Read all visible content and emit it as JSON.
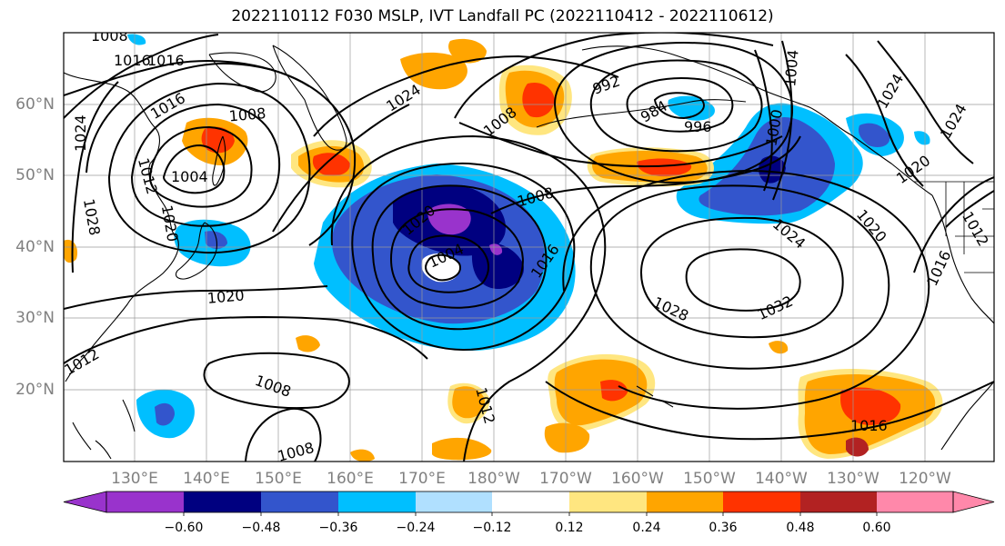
{
  "title": "2022110112 F030 MSLP, IVT Landfall PC (2022110412 - 2022110612)",
  "lat_labels": [
    "60°N",
    "50°N",
    "40°N",
    "30°N",
    "20°N"
  ],
  "lon_labels": [
    "130°E",
    "140°E",
    "150°E",
    "160°E",
    "170°E",
    "180°W",
    "170°W",
    "160°W",
    "150°W",
    "140°W",
    "130°W",
    "120°W"
  ],
  "colorbar": {
    "tick_labels": [
      "−0.60",
      "−0.48",
      "−0.36",
      "−0.24",
      "−0.12",
      "0.12",
      "0.24",
      "0.36",
      "0.48",
      "0.60"
    ],
    "colors": [
      "#9933cc",
      "#000080",
      "#3355cc",
      "#00bfff",
      "#b0e0ff",
      "#ffffff",
      "#ffe680",
      "#ffa500",
      "#ff3300",
      "#b22222",
      "#ff88aa"
    ]
  },
  "contour_labels": [
    "1008",
    "1016",
    "1016",
    "1016",
    "1008",
    "1024",
    "1004",
    "1012",
    "1020",
    "1028",
    "1024",
    "992",
    "984",
    "996",
    "1008",
    "1000",
    "1004",
    "1024",
    "1020",
    "1020",
    "1016",
    "1012",
    "1024",
    "1020",
    "1008",
    "1004",
    "1016",
    "1012",
    "1008",
    "1008",
    "1032",
    "1028",
    "1024",
    "1020",
    "1012",
    "1016"
  ]
}
